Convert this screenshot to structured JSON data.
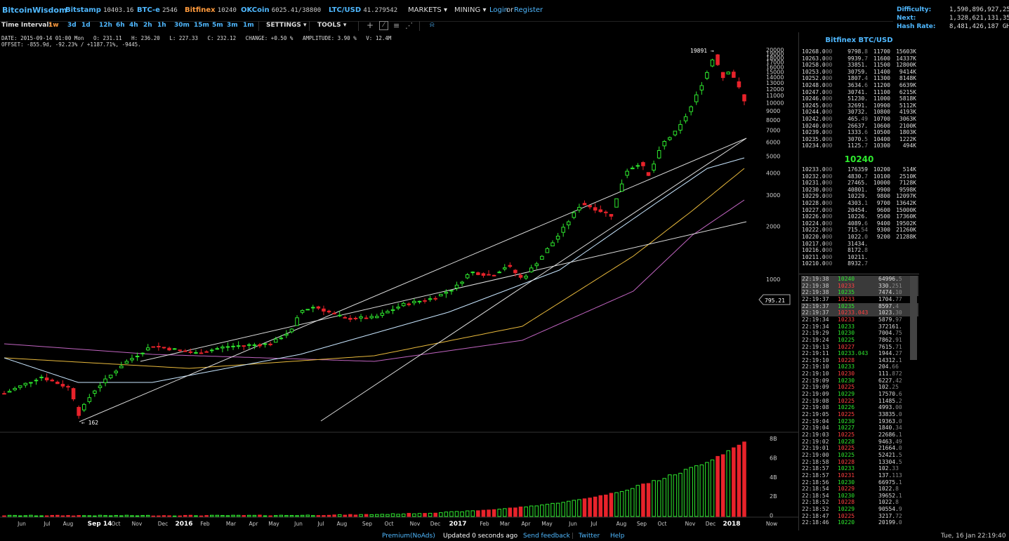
{
  "topbar": {
    "brand": "BitcoinWisdom",
    "tickers": [
      {
        "name": "Bitstamp",
        "price": "10403.16",
        "color": "#4fb8ff"
      },
      {
        "name": "BTC-e",
        "price": "2546",
        "color": "#4fb8ff"
      },
      {
        "name": "Bitfinex",
        "price": "10240",
        "color": "#ff9a3c"
      },
      {
        "name": "OKCoin",
        "price": "6025.41/38800",
        "color": "#4fb8ff"
      },
      {
        "name": "LTC/USD",
        "price": "41.279542",
        "color": "#4fb8ff"
      }
    ],
    "markets": "MARKETS",
    "mining": "MINING",
    "login": "Login",
    "or": "or",
    "register": "Register"
  },
  "difficulty": {
    "difficulty_label": "Difficulty:",
    "difficulty_value": "1,590,896,927,258",
    "next_label": "Next:",
    "next_value": "1,328,621,131,354",
    "hashrate_label": "Hash Rate:",
    "hashrate_value": "8,481,426,187 GH/s"
  },
  "toolbar": {
    "time_interval_label": "Time Interval:",
    "intervals": [
      "1w",
      "3d",
      "1d",
      "12h",
      "6h",
      "4h",
      "2h",
      "1h",
      "30m",
      "15m",
      "5m",
      "3m",
      "1m"
    ],
    "active_interval": "1w",
    "settings": "SETTINGS",
    "tools": "TOOLS"
  },
  "info": {
    "line1": "DATE: 2015-09-14 01:00 Mon   O: 231.11   H: 236.20   L: 227.33   C: 232.12   CHANGE: +0.50 %   AMPLITUDE: 3.90 %   V: 12.4M",
    "line2": "OFFSET: -855.9d, -92.23% / +1187.71%, -9445."
  },
  "chart_data": {
    "type": "candlestick",
    "scale": "log",
    "price_axis_ticks": [
      "20000",
      "19000",
      "18000",
      "17000",
      "16000",
      "15000",
      "14000",
      "13000",
      "12000",
      "11000",
      "10000",
      "9000",
      "8000",
      "7000",
      "6000",
      "5000",
      "4000",
      "3000",
      "2000",
      "1000"
    ],
    "volume_axis_ticks": [
      "8B",
      "6B",
      "4B",
      "2B",
      "0"
    ],
    "time_labels": [
      "Jun",
      "Jul",
      "Aug",
      "Sep 14",
      "Oct",
      "Nov",
      "Dec",
      "2016",
      "Feb",
      "Mar",
      "Apr",
      "May",
      "Jun",
      "Jul",
      "Aug",
      "Sep",
      "Oct",
      "Nov",
      "Dec",
      "2017",
      "Feb",
      "Mar",
      "Apr",
      "May",
      "Jun",
      "Jul",
      "Aug",
      "Sep",
      "Oct",
      "Nov",
      "Dec",
      "2018",
      "Now"
    ],
    "annotations": {
      "high_label": "19891",
      "low_label": "162",
      "cursor_price": "795.21"
    },
    "colors": {
      "up": "#2ee82e",
      "down": "#e8232b"
    }
  },
  "orderbook": {
    "title": "Bitfinex BTC/USD",
    "last_price": "10240",
    "asks": [
      [
        "10268.0",
        "00",
        "9798.",
        "8",
        "11700",
        "15603K"
      ],
      [
        "10263.0",
        "00",
        "9939.",
        "7",
        "11600",
        "14337K"
      ],
      [
        "10258.0",
        "00",
        "33851.",
        "",
        "11500",
        "12800K"
      ],
      [
        "10253.0",
        "00",
        "30759.",
        "",
        "11400",
        "9414K"
      ],
      [
        "10252.0",
        "00",
        "1807.",
        "4",
        "11300",
        "8148K"
      ],
      [
        "10248.0",
        "00",
        "3634.",
        "6",
        "11200",
        "6639K"
      ],
      [
        "10247.0",
        "00",
        "30741.",
        "",
        "11100",
        "6215K"
      ],
      [
        "10246.0",
        "00",
        "51230.",
        "",
        "11000",
        "5818K"
      ],
      [
        "10245.0",
        "00",
        "32691.",
        "",
        "10900",
        "5112K"
      ],
      [
        "10244.0",
        "00",
        "30732.",
        "",
        "10800",
        "4193K"
      ],
      [
        "10242.0",
        "00",
        "465.",
        "49",
        "10700",
        "3063K"
      ],
      [
        "10240.0",
        "00",
        "26637.",
        "",
        "10600",
        "2100K"
      ],
      [
        "10239.0",
        "00",
        "1333.",
        "6",
        "10500",
        "1803K"
      ],
      [
        "10235.0",
        "00",
        "3070.",
        "5",
        "10400",
        "1222K"
      ],
      [
        "10234.0",
        "00",
        "1125.",
        "7",
        "10300",
        "494K"
      ]
    ],
    "bids": [
      [
        "10233.0",
        "00",
        "176359",
        "",
        "10200",
        "514K"
      ],
      [
        "10232.0",
        "00",
        "4830.",
        "7",
        "10100",
        "2510K"
      ],
      [
        "10231.0",
        "00",
        "27465.",
        "",
        "10000",
        "7128K"
      ],
      [
        "10230.0",
        "00",
        "40801.",
        "",
        "9900",
        "9598K"
      ],
      [
        "10229.0",
        "00",
        "10229.",
        "",
        "9800",
        "12097K"
      ],
      [
        "10228.0",
        "00",
        "4303.",
        "1",
        "9700",
        "13642K"
      ],
      [
        "10227.0",
        "00",
        "20454.",
        "",
        "9600",
        "15000K"
      ],
      [
        "10226.0",
        "00",
        "10226.",
        "",
        "9500",
        "17360K"
      ],
      [
        "10224.0",
        "00",
        "4089.",
        "6",
        "9400",
        "19502K"
      ],
      [
        "10222.0",
        "00",
        "715.",
        "54",
        "9300",
        "21260K"
      ],
      [
        "10220.0",
        "00",
        "1022.",
        "0",
        "9200",
        "21288K"
      ],
      [
        "10217.0",
        "00",
        "31434.",
        "",
        "",
        ""
      ],
      [
        "10216.0",
        "00",
        "8172.",
        "8",
        "",
        ""
      ],
      [
        "10211.0",
        "00",
        "10211.",
        "",
        "",
        ""
      ],
      [
        "10210.0",
        "00",
        "8932.",
        "7",
        "",
        ""
      ]
    ]
  },
  "trades": [
    {
      "time": "22:19:38",
      "price": "10240",
      "amount": "64996.",
      "amt_dim": "5",
      "side": "up",
      "hl": true
    },
    {
      "time": "22:19:38",
      "price": "10233",
      "amount": "330.",
      "amt_dim": "251",
      "side": "dn",
      "hl": true
    },
    {
      "time": "22:19:38",
      "price": "10235",
      "amount": "7474.",
      "amt_dim": "10",
      "side": "up",
      "hl": true
    },
    {
      "time": "22:19:37",
      "price": "10233",
      "amount": "1704.",
      "amt_dim": "77",
      "side": "dn",
      "hl": false
    },
    {
      "time": "22:19:37",
      "price": "10235",
      "amount": "8597.",
      "amt_dim": "4",
      "side": "up",
      "hl": true
    },
    {
      "time": "22:19:37",
      "price": "10233.043",
      "amount": "1023.",
      "amt_dim": "30",
      "side": "dn",
      "hl": true
    },
    {
      "time": "22:19:34",
      "price": "10233",
      "amount": "5879.",
      "amt_dim": "97",
      "side": "dn",
      "hl": false
    },
    {
      "time": "22:19:34",
      "price": "10233",
      "amount": "372161.",
      "amt_dim": "",
      "side": "up",
      "hl": false
    },
    {
      "time": "22:19:29",
      "price": "10230",
      "amount": "7004.",
      "amt_dim": "75",
      "side": "up",
      "hl": false
    },
    {
      "time": "22:19:24",
      "price": "10225",
      "amount": "7862.",
      "amt_dim": "91",
      "side": "up",
      "hl": false
    },
    {
      "time": "22:19:13",
      "price": "10227",
      "amount": "7615.",
      "amt_dim": "71",
      "side": "dn",
      "hl": false
    },
    {
      "time": "22:19:11",
      "price": "10233.043",
      "amount": "1944.",
      "amt_dim": "27",
      "side": "up",
      "hl": false
    },
    {
      "time": "22:19:10",
      "price": "10228",
      "amount": "14312.",
      "amt_dim": "1",
      "side": "dn",
      "hl": false
    },
    {
      "time": "22:19:10",
      "price": "10233",
      "amount": "204.",
      "amt_dim": "66",
      "side": "up",
      "hl": false
    },
    {
      "time": "22:19:10",
      "price": "10230",
      "amount": "111.",
      "amt_dim": "872",
      "side": "dn",
      "hl": false
    },
    {
      "time": "22:19:09",
      "price": "10230",
      "amount": "6227.",
      "amt_dim": "42",
      "side": "up",
      "hl": false
    },
    {
      "time": "22:19:09",
      "price": "10225",
      "amount": "102.",
      "amt_dim": "25",
      "side": "dn",
      "hl": false
    },
    {
      "time": "22:19:09",
      "price": "10229",
      "amount": "17570.",
      "amt_dim": "6",
      "side": "up",
      "hl": false
    },
    {
      "time": "22:19:08",
      "price": "10225",
      "amount": "11485.",
      "amt_dim": "2",
      "side": "dn",
      "hl": false
    },
    {
      "time": "22:19:08",
      "price": "10226",
      "amount": "4993.",
      "amt_dim": "00",
      "side": "up",
      "hl": false
    },
    {
      "time": "22:19:05",
      "price": "10225",
      "amount": "33835.",
      "amt_dim": "0",
      "side": "dn",
      "hl": false
    },
    {
      "time": "22:19:04",
      "price": "10230",
      "amount": "19363.",
      "amt_dim": "0",
      "side": "up",
      "hl": false
    },
    {
      "time": "22:19:04",
      "price": "10227",
      "amount": "1840.",
      "amt_dim": "34",
      "side": "up",
      "hl": false
    },
    {
      "time": "22:19:03",
      "price": "10225",
      "amount": "22686.",
      "amt_dim": "1",
      "side": "dn",
      "hl": false
    },
    {
      "time": "22:19:02",
      "price": "10228",
      "amount": "9463.",
      "amt_dim": "49",
      "side": "up",
      "hl": false
    },
    {
      "time": "22:19:01",
      "price": "10225",
      "amount": "21664.",
      "amt_dim": "0",
      "side": "dn",
      "hl": false
    },
    {
      "time": "22:19:00",
      "price": "10225",
      "amount": "52421.",
      "amt_dim": "5",
      "side": "up",
      "hl": false
    },
    {
      "time": "22:18:58",
      "price": "10228",
      "amount": "13304.",
      "amt_dim": "5",
      "side": "dn",
      "hl": false
    },
    {
      "time": "22:18:57",
      "price": "10233",
      "amount": "102.",
      "amt_dim": "33",
      "side": "up",
      "hl": false
    },
    {
      "time": "22:18:57",
      "price": "10231",
      "amount": "137.",
      "amt_dim": "113",
      "side": "dn",
      "hl": false
    },
    {
      "time": "22:18:56",
      "price": "10230",
      "amount": "66975.",
      "amt_dim": "1",
      "side": "up",
      "hl": false
    },
    {
      "time": "22:18:54",
      "price": "10229",
      "amount": "1022.",
      "amt_dim": "8",
      "side": "dn",
      "hl": false
    },
    {
      "time": "22:18:54",
      "price": "10230",
      "amount": "39652.",
      "amt_dim": "1",
      "side": "up",
      "hl": false
    },
    {
      "time": "22:18:52",
      "price": "10228",
      "amount": "1022.",
      "amt_dim": "8",
      "side": "dn",
      "hl": false
    },
    {
      "time": "22:18:52",
      "price": "10229",
      "amount": "90554.",
      "amt_dim": "9",
      "side": "up",
      "hl": false
    },
    {
      "time": "22:18:47",
      "price": "10225",
      "amount": "3217.",
      "amt_dim": "72",
      "side": "dn",
      "hl": false
    },
    {
      "time": "22:18:46",
      "price": "10220",
      "amount": "20199.",
      "amt_dim": "0",
      "side": "up",
      "hl": false
    }
  ],
  "footer": {
    "premium": "Premium(NoAds)",
    "updated": "Updated 0 seconds ago",
    "feedback": "Send feedback",
    "twitter": "Twitter",
    "help": "Help",
    "clock": "Tue, 16 Jan 22:19:40"
  }
}
